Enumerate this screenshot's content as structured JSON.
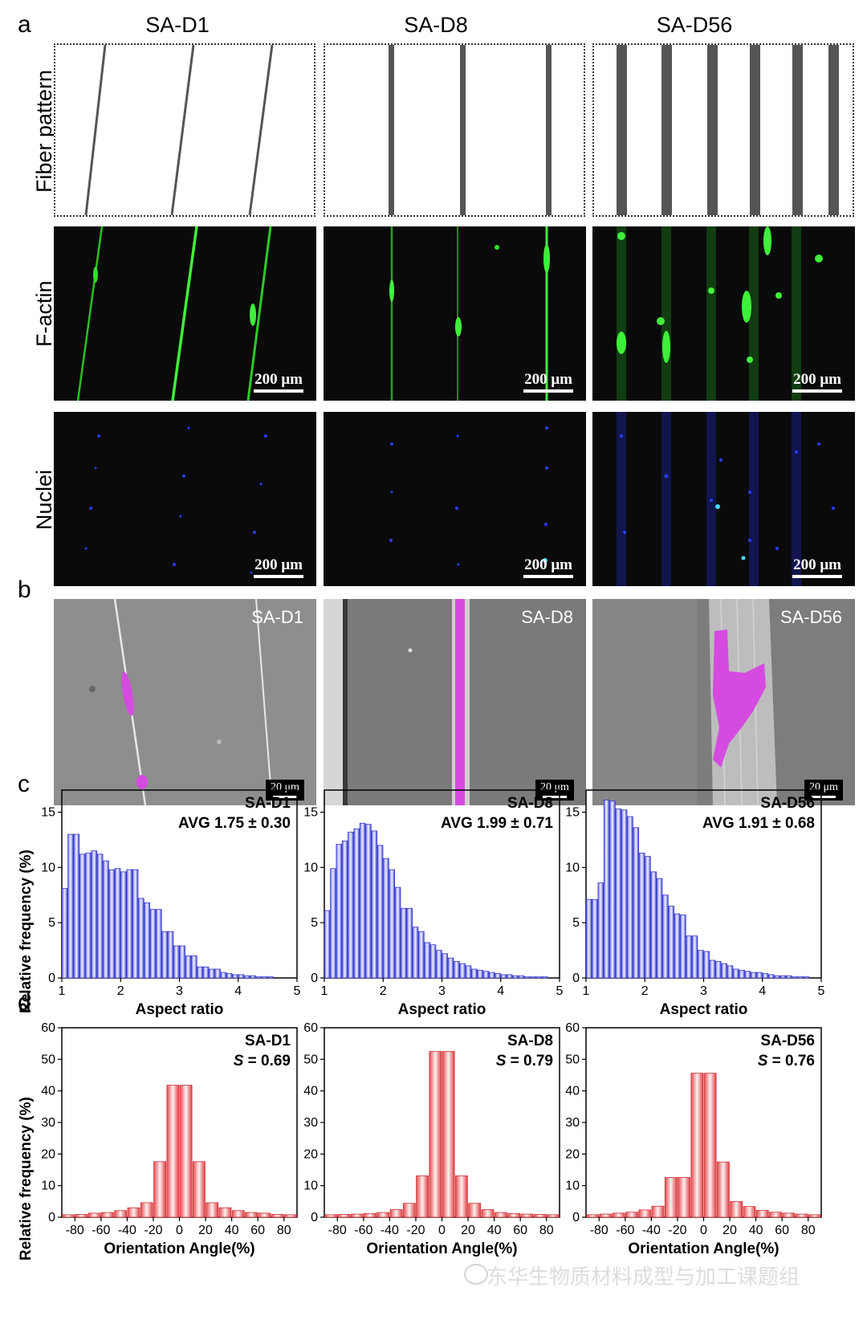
{
  "panels": {
    "a": "a",
    "b": "b",
    "c": "c",
    "d": "d"
  },
  "columns": [
    "SA-D1",
    "SA-D8",
    "SA-D56"
  ],
  "row_labels": {
    "fiber": "Fiber pattern",
    "factin": "F-actin",
    "nuclei": "Nuclei"
  },
  "scale_fluor": "200 μm",
  "scale_sem": "20 μm",
  "colors": {
    "factin": "#2fe02a",
    "nuclei": "#2a3cff",
    "hist_bar": "#4a4ee0",
    "orient_bar": "#e8585a",
    "cell": "#d54be0"
  },
  "aspect_label": "Aspect ratio",
  "orient_label": "Orientation Angle(%)",
  "ylabel": "Relative frequency (%)",
  "watermark": "东华生物质材料成型与加工课题组",
  "chart_data": [
    {
      "type": "bar",
      "panel": "c",
      "title": "SA-D1",
      "stat_label": "AVG",
      "stat": "1.75 ± 0.30",
      "x": [
        1.05,
        1.15,
        1.25,
        1.35,
        1.45,
        1.55,
        1.65,
        1.75,
        1.85,
        1.95,
        2.05,
        2.15,
        2.25,
        2.35,
        2.45,
        2.55,
        2.65,
        2.75,
        2.85,
        2.95,
        3.05,
        3.15,
        3.25,
        3.35,
        3.45,
        3.55,
        3.65,
        3.75,
        3.85,
        3.95,
        4.05,
        4.15,
        4.25,
        4.35,
        4.45,
        4.55
      ],
      "values": [
        8.1,
        13.0,
        13.0,
        11.2,
        11.3,
        11.5,
        11.2,
        10.6,
        9.8,
        9.9,
        9.6,
        9.8,
        9.8,
        7.2,
        6.8,
        6.2,
        6.2,
        4.2,
        4.2,
        2.9,
        2.9,
        2.0,
        2.0,
        1.0,
        1.0,
        0.8,
        0.8,
        0.5,
        0.4,
        0.3,
        0.3,
        0.2,
        0.2,
        0.1,
        0.1,
        0.1
      ],
      "xticks": [
        "1",
        "2",
        "3",
        "4",
        "5"
      ],
      "yticks": [
        "0",
        "5",
        "10",
        "15"
      ],
      "xlim": [
        1,
        5
      ],
      "ylim": [
        0,
        17
      ],
      "xlabel": "Aspect ratio",
      "ylabel": "Relative frequency (%)"
    },
    {
      "type": "bar",
      "panel": "c",
      "title": "SA-D8",
      "stat_label": "AVG",
      "stat": "1.99 ± 0.71",
      "x": [
        1.05,
        1.15,
        1.25,
        1.35,
        1.45,
        1.55,
        1.65,
        1.75,
        1.85,
        1.95,
        2.05,
        2.15,
        2.25,
        2.35,
        2.45,
        2.55,
        2.65,
        2.75,
        2.85,
        2.95,
        3.05,
        3.15,
        3.25,
        3.35,
        3.45,
        3.55,
        3.65,
        3.75,
        3.85,
        3.95,
        4.05,
        4.15,
        4.25,
        4.35,
        4.45,
        4.55,
        4.65,
        4.75
      ],
      "values": [
        6.1,
        9.9,
        12.1,
        12.4,
        13.2,
        13.5,
        14.0,
        13.9,
        13.3,
        12.0,
        10.8,
        9.8,
        8.2,
        6.3,
        6.3,
        4.6,
        4.2,
        3.2,
        3.0,
        2.5,
        2.2,
        1.8,
        1.5,
        1.3,
        1.1,
        0.8,
        0.7,
        0.6,
        0.5,
        0.4,
        0.3,
        0.3,
        0.2,
        0.2,
        0.1,
        0.1,
        0.1,
        0.1
      ],
      "xticks": [
        "1",
        "2",
        "3",
        "4",
        "5"
      ],
      "yticks": [
        "0",
        "5",
        "10",
        "15"
      ],
      "xlim": [
        1,
        5
      ],
      "ylim": [
        0,
        17
      ],
      "xlabel": "Aspect ratio",
      "ylabel": "Relative frequency (%)"
    },
    {
      "type": "bar",
      "panel": "c",
      "title": "SA-D56",
      "stat_label": "AVG",
      "stat": "1.91 ± 0.68",
      "x": [
        1.05,
        1.15,
        1.25,
        1.35,
        1.45,
        1.55,
        1.65,
        1.75,
        1.85,
        1.95,
        2.05,
        2.15,
        2.25,
        2.35,
        2.45,
        2.55,
        2.65,
        2.75,
        2.85,
        2.95,
        3.05,
        3.15,
        3.25,
        3.35,
        3.45,
        3.55,
        3.65,
        3.75,
        3.85,
        3.95,
        4.05,
        4.15,
        4.25,
        4.35,
        4.45,
        4.55,
        4.65,
        4.75
      ],
      "values": [
        7.1,
        7.1,
        8.6,
        16.1,
        16.0,
        15.3,
        15.2,
        14.6,
        13.6,
        11.3,
        11.0,
        9.6,
        9.0,
        7.5,
        6.5,
        5.8,
        5.7,
        3.8,
        3.8,
        2.5,
        2.4,
        1.6,
        1.5,
        1.3,
        1.1,
        0.8,
        0.7,
        0.6,
        0.5,
        0.5,
        0.4,
        0.3,
        0.2,
        0.2,
        0.2,
        0.1,
        0.1,
        0.1
      ],
      "xticks": [
        "1",
        "2",
        "3",
        "4",
        "5"
      ],
      "yticks": [
        "0",
        "5",
        "10",
        "15"
      ],
      "xlim": [
        1,
        5
      ],
      "ylim": [
        0,
        17
      ],
      "xlabel": "Aspect ratio",
      "ylabel": "Relative frequency (%)"
    },
    {
      "type": "bar",
      "panel": "d",
      "title": "SA-D1",
      "stat_label": "S",
      "stat": "= 0.69",
      "x": [
        -85,
        -75,
        -65,
        -55,
        -45,
        -35,
        -25,
        -15,
        -5,
        5,
        15,
        25,
        35,
        45,
        55,
        65,
        75,
        85
      ],
      "values": [
        0.8,
        0.9,
        1.3,
        1.5,
        2.1,
        3.0,
        4.6,
        17.6,
        41.8,
        41.8,
        17.6,
        4.6,
        3.0,
        2.1,
        1.5,
        1.3,
        0.9,
        0.8
      ],
      "xticks": [
        "-80",
        "-60",
        "-40",
        "-20",
        "0",
        "20",
        "40",
        "60",
        "80"
      ],
      "yticks": [
        "0",
        "10",
        "20",
        "30",
        "40",
        "50",
        "60"
      ],
      "xlim": [
        -90,
        90
      ],
      "ylim": [
        0,
        60
      ],
      "xlabel": "Orientation Angle(%)",
      "ylabel": "Relative frequency (%)"
    },
    {
      "type": "bar",
      "panel": "d",
      "title": "SA-D8",
      "stat_label": "S",
      "stat": "= 0.79",
      "x": [
        -85,
        -75,
        -65,
        -55,
        -45,
        -35,
        -25,
        -15,
        -5,
        5,
        15,
        25,
        35,
        45,
        55,
        65,
        75,
        85
      ],
      "values": [
        0.8,
        0.9,
        1.0,
        1.2,
        1.5,
        2.4,
        4.4,
        13.1,
        52.5,
        52.5,
        13.1,
        4.4,
        2.4,
        1.5,
        1.2,
        1.0,
        0.9,
        0.8
      ],
      "xticks": [
        "-80",
        "-60",
        "-40",
        "-20",
        "0",
        "20",
        "40",
        "60",
        "80"
      ],
      "yticks": [
        "0",
        "10",
        "20",
        "30",
        "40",
        "50",
        "60"
      ],
      "xlim": [
        -90,
        90
      ],
      "ylim": [
        0,
        60
      ],
      "xlabel": "Orientation Angle(%)",
      "ylabel": "Relative frequency (%)"
    },
    {
      "type": "bar",
      "panel": "d",
      "title": "SA-D56",
      "stat_label": "S",
      "stat": "= 0.76",
      "x": [
        -85,
        -75,
        -65,
        -55,
        -45,
        -35,
        -25,
        -15,
        -5,
        5,
        15,
        25,
        35,
        45,
        55,
        65,
        75,
        85
      ],
      "values": [
        0.8,
        1.0,
        1.3,
        1.6,
        2.3,
        3.5,
        12.6,
        12.6,
        45.6,
        45.6,
        17.5,
        5.0,
        3.4,
        2.2,
        1.6,
        1.3,
        1.0,
        0.8
      ],
      "xticks": [
        "-80",
        "-60",
        "-40",
        "-20",
        "0",
        "20",
        "40",
        "60",
        "80"
      ],
      "yticks": [
        "0",
        "10",
        "20",
        "30",
        "40",
        "50",
        "60"
      ],
      "xlim": [
        -90,
        90
      ],
      "ylim": [
        0,
        60
      ],
      "xlabel": "Orientation Angle(%)",
      "ylabel": "Relative frequency (%)"
    }
  ]
}
